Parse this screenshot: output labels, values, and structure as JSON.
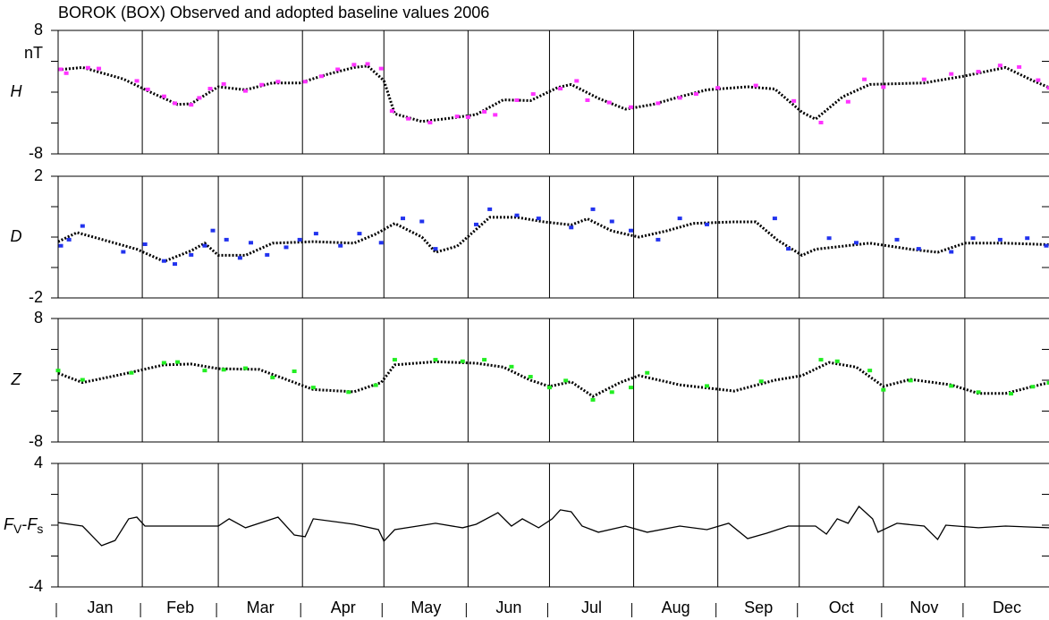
{
  "title": "BOROK (BOX)  Observed and adopted baseline values  2006",
  "x_axis": {
    "categories": [
      "Jan",
      "Feb",
      "Mar",
      "Apr",
      "May",
      "Jun",
      "Jul",
      "Aug",
      "Sep",
      "Oct",
      "Nov",
      "Dec"
    ],
    "xticks": [
      1,
      32,
      60,
      91,
      121,
      152,
      182,
      213,
      244,
      274,
      305,
      335
    ],
    "xlim": [
      1,
      366
    ]
  },
  "chart_data": [
    {
      "type": "line",
      "ylabel": "H",
      "unit": "nT",
      "ylim": [
        -8,
        8
      ],
      "yticks": [
        -8,
        8
      ],
      "minor_yticks": [
        -4,
        0,
        4
      ],
      "series": [
        {
          "color": "#000000",
          "style": "dotted",
          "x": [
            1,
            10,
            25,
            35,
            45,
            50,
            60,
            70,
            80,
            90,
            100,
            110,
            115,
            121,
            125,
            135,
            145,
            155,
            165,
            175,
            185,
            190,
            200,
            210,
            220,
            230,
            240,
            255,
            265,
            275,
            280,
            290,
            300,
            320,
            335,
            350,
            360,
            366
          ],
          "values": [
            2.9,
            3.2,
            1.7,
            0,
            -1.6,
            -1.5,
            0.7,
            0.3,
            1.2,
            1.2,
            2.3,
            3.2,
            3.4,
            1.5,
            -2.8,
            -3.8,
            -3.4,
            -2.9,
            -1.0,
            -1.1,
            0.6,
            1.0,
            -0.8,
            -2.2,
            -1.6,
            -0.6,
            0.3,
            0.7,
            0.4,
            -2.6,
            -3.5,
            -0.6,
            1.0,
            1.2,
            2.1,
            3.2,
            1.5,
            0.6
          ]
        },
        {
          "color": "#ff33ff",
          "style": "points",
          "x": [
            2,
            4,
            12,
            16,
            30,
            34,
            40,
            44,
            50,
            53,
            57,
            62,
            70,
            76,
            82,
            92,
            98,
            104,
            110,
            115,
            120,
            124,
            130,
            138,
            148,
            152,
            158,
            162,
            170,
            176,
            186,
            192,
            196,
            204,
            212,
            222,
            230,
            236,
            244,
            258,
            272,
            282,
            292,
            298,
            305,
            320,
            330,
            340,
            348,
            355,
            362,
            366
          ],
          "values": [
            2.9,
            2.4,
            3.1,
            3.0,
            1.4,
            0.3,
            -0.6,
            -1.5,
            -1.7,
            -0.8,
            0.4,
            1.0,
            0.1,
            0.9,
            1.3,
            1.3,
            2.0,
            2.9,
            3.5,
            3.6,
            3.0,
            -2.5,
            -3.5,
            -4.0,
            -3.2,
            -3.3,
            -2.6,
            -3.0,
            -1.1,
            -0.3,
            0.4,
            1.4,
            -1.1,
            -1.4,
            -2.0,
            -1.5,
            -0.8,
            -0.3,
            0.5,
            0.8,
            -1.2,
            -4.0,
            -1.3,
            1.6,
            0.6,
            1.6,
            2.3,
            2.6,
            3.4,
            3.2,
            1.5,
            0.5
          ]
        }
      ]
    },
    {
      "type": "line",
      "ylabel": "D",
      "ylim": [
        -2,
        2
      ],
      "yticks": [
        -2,
        2
      ],
      "minor_yticks": [
        -1,
        0,
        1
      ],
      "series": [
        {
          "color": "#000000",
          "style": "dotted",
          "x": [
            1,
            8,
            20,
            30,
            40,
            50,
            55,
            60,
            70,
            80,
            95,
            110,
            118,
            125,
            135,
            140,
            148,
            160,
            170,
            180,
            190,
            196,
            205,
            215,
            225,
            235,
            250,
            258,
            266,
            275,
            280,
            300,
            315,
            325,
            335,
            350,
            366
          ],
          "values": [
            -0.15,
            0.15,
            -0.15,
            -0.4,
            -0.8,
            -0.45,
            -0.2,
            -0.6,
            -0.6,
            -0.2,
            -0.15,
            -0.2,
            0.1,
            0.45,
            0,
            -0.5,
            -0.3,
            0.65,
            0.65,
            0.5,
            0.4,
            0.6,
            0.2,
            0,
            0.2,
            0.45,
            0.5,
            0.5,
            -0.1,
            -0.6,
            -0.4,
            -0.2,
            -0.4,
            -0.5,
            -0.2,
            -0.2,
            -0.25
          ]
        },
        {
          "color": "#2233ee",
          "style": "points",
          "x": [
            2,
            5,
            10,
            25,
            33,
            40,
            44,
            50,
            55,
            58,
            63,
            68,
            72,
            78,
            85,
            90,
            96,
            105,
            112,
            120,
            128,
            135,
            140,
            155,
            160,
            170,
            178,
            190,
            198,
            205,
            212,
            222,
            230,
            240,
            265,
            270,
            285,
            295,
            310,
            318,
            330,
            338,
            348,
            358,
            365
          ],
          "values": [
            -0.3,
            -0.1,
            0.35,
            -0.5,
            -0.25,
            -0.8,
            -0.9,
            -0.6,
            -0.3,
            0.2,
            -0.1,
            -0.7,
            -0.2,
            -0.6,
            -0.35,
            -0.1,
            0.1,
            -0.3,
            0.1,
            -0.2,
            0.6,
            0.5,
            -0.4,
            0.4,
            0.9,
            0.7,
            0.6,
            0.3,
            0.9,
            0.5,
            0.2,
            -0.1,
            0.6,
            0.4,
            0.6,
            -0.4,
            -0.05,
            -0.2,
            -0.1,
            -0.4,
            -0.5,
            -0.05,
            -0.1,
            -0.05,
            -0.3
          ]
        }
      ]
    },
    {
      "type": "line",
      "ylabel": "Z",
      "ylim": [
        -8,
        8
      ],
      "yticks": [
        -8,
        8
      ],
      "minor_yticks": [
        -4,
        0,
        4
      ],
      "series": [
        {
          "color": "#000000",
          "style": "dotted",
          "x": [
            1,
            10,
            25,
            40,
            50,
            60,
            75,
            85,
            95,
            110,
            120,
            125,
            140,
            155,
            165,
            175,
            182,
            190,
            198,
            208,
            215,
            230,
            250,
            265,
            275,
            285,
            295,
            305,
            315,
            330,
            340,
            350,
            366
          ],
          "values": [
            0.9,
            -0.3,
            0.8,
            2.0,
            2.1,
            1.5,
            1.4,
            0.1,
            -1.2,
            -1.5,
            -0.3,
            2.0,
            2.4,
            2.2,
            1.7,
            0,
            -0.8,
            -0.2,
            -2.1,
            -0.3,
            0.6,
            -0.6,
            -1.4,
            0,
            0.6,
            2.3,
            1.7,
            -0.8,
            0.1,
            -0.6,
            -1.7,
            -1.7,
            -0.3
          ]
        },
        {
          "color": "#22ee22",
          "style": "points",
          "x": [
            1,
            10,
            28,
            40,
            45,
            55,
            62,
            70,
            80,
            88,
            95,
            108,
            118,
            125,
            140,
            150,
            158,
            168,
            175,
            182,
            188,
            198,
            205,
            212,
            218,
            240,
            260,
            282,
            288,
            300,
            305,
            315,
            330,
            340,
            352,
            360,
            366
          ],
          "values": [
            1.2,
            0,
            0.9,
            2.2,
            2.3,
            1.2,
            1.3,
            1.5,
            0.3,
            1.1,
            -1.0,
            -1.6,
            -0.7,
            2.6,
            2.6,
            2.4,
            2.6,
            1.7,
            0.4,
            -1.0,
            -0.1,
            -2.6,
            -1.6,
            -1.0,
            0.9,
            -0.8,
            -0.2,
            2.6,
            2.4,
            1.2,
            -1.3,
            -0.1,
            -0.8,
            -1.6,
            -1.8,
            -0.9,
            -0.4
          ]
        }
      ]
    },
    {
      "type": "line",
      "ylabel": [
        "F",
        "V",
        "-",
        "F",
        "s"
      ],
      "ylim": [
        -4,
        4
      ],
      "yticks": [
        -4,
        4
      ],
      "minor_yticks": [
        -2,
        0,
        2
      ],
      "series": [
        {
          "color": "#000000",
          "style": "solid",
          "x": [
            1,
            10,
            17,
            22,
            27,
            30,
            33,
            60,
            64,
            70,
            82,
            88,
            92,
            95,
            110,
            119,
            121,
            125,
            140,
            150,
            155,
            163,
            168,
            172,
            178,
            183,
            186,
            190,
            194,
            200,
            210,
            218,
            230,
            240,
            248,
            255,
            262,
            270,
            280,
            284,
            288,
            292,
            296,
            301,
            303,
            310,
            320,
            325,
            328,
            340,
            350,
            366
          ],
          "values": [
            0.17,
            -0.06,
            -1.33,
            -0.99,
            0.41,
            0.52,
            -0.06,
            -0.06,
            0.41,
            -0.17,
            0.52,
            -0.64,
            -0.75,
            0.41,
            0.06,
            -0.29,
            -1.04,
            -0.29,
            0.12,
            -0.17,
            0.06,
            0.81,
            -0.06,
            0.41,
            -0.17,
            0.41,
            0.99,
            0.87,
            -0.06,
            -0.46,
            -0.06,
            -0.46,
            -0.06,
            -0.29,
            0.12,
            -0.87,
            -0.52,
            -0.06,
            -0.06,
            -0.58,
            0.41,
            0.12,
            1.22,
            0.41,
            -0.46,
            0.12,
            -0.06,
            -0.93,
            0,
            -0.17,
            -0.06,
            -0.17
          ]
        }
      ]
    }
  ]
}
